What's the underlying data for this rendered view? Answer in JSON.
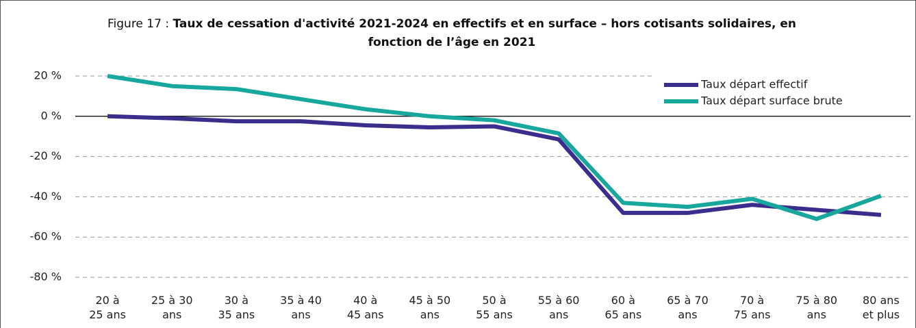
{
  "chart_data": {
    "type": "line",
    "title_prefix": "Figure 17 :",
    "title": "Taux de cessation d'activité 2021-2024 en effectifs et en surface – hors cotisants solidaires, en fonction de l’âge en 2021",
    "categories": [
      "20 à\n25 ans",
      "25 à 30\nans",
      "30 à\n35 ans",
      "35 à 40\nans",
      "40 à\n45 ans",
      "45 à 50\nans",
      "50 à\n55 ans",
      "55 à 60\nans",
      "60 à\n65 ans",
      "65 à 70\nans",
      "70 à\n75 ans",
      "75 à 80\nans",
      "80 ans\net plus"
    ],
    "series": [
      {
        "name": "Taux départ effectif",
        "color": "#3a2d8c",
        "values": [
          0,
          -1,
          -2.5,
          -2.5,
          -4.5,
          -5.5,
          -5,
          -11.5,
          -48,
          -48,
          -44,
          -46.5,
          -49
        ]
      },
      {
        "name": "Taux départ surface brute",
        "color": "#17a79c",
        "values": [
          20,
          15,
          13.5,
          8.5,
          3.5,
          0,
          -2,
          -8.5,
          -43,
          -45,
          -41,
          -51,
          -39.5
        ]
      }
    ],
    "ylim": [
      -80,
      20
    ],
    "yticks": [
      {
        "value": 20,
        "label": "20 %"
      },
      {
        "value": 0,
        "label": "0 %"
      },
      {
        "value": -20,
        "label": "-20 %"
      },
      {
        "value": -40,
        "label": "-40 %"
      },
      {
        "value": -60,
        "label": "-60 %"
      },
      {
        "value": -80,
        "label": "-80 %"
      }
    ],
    "grid": true
  }
}
